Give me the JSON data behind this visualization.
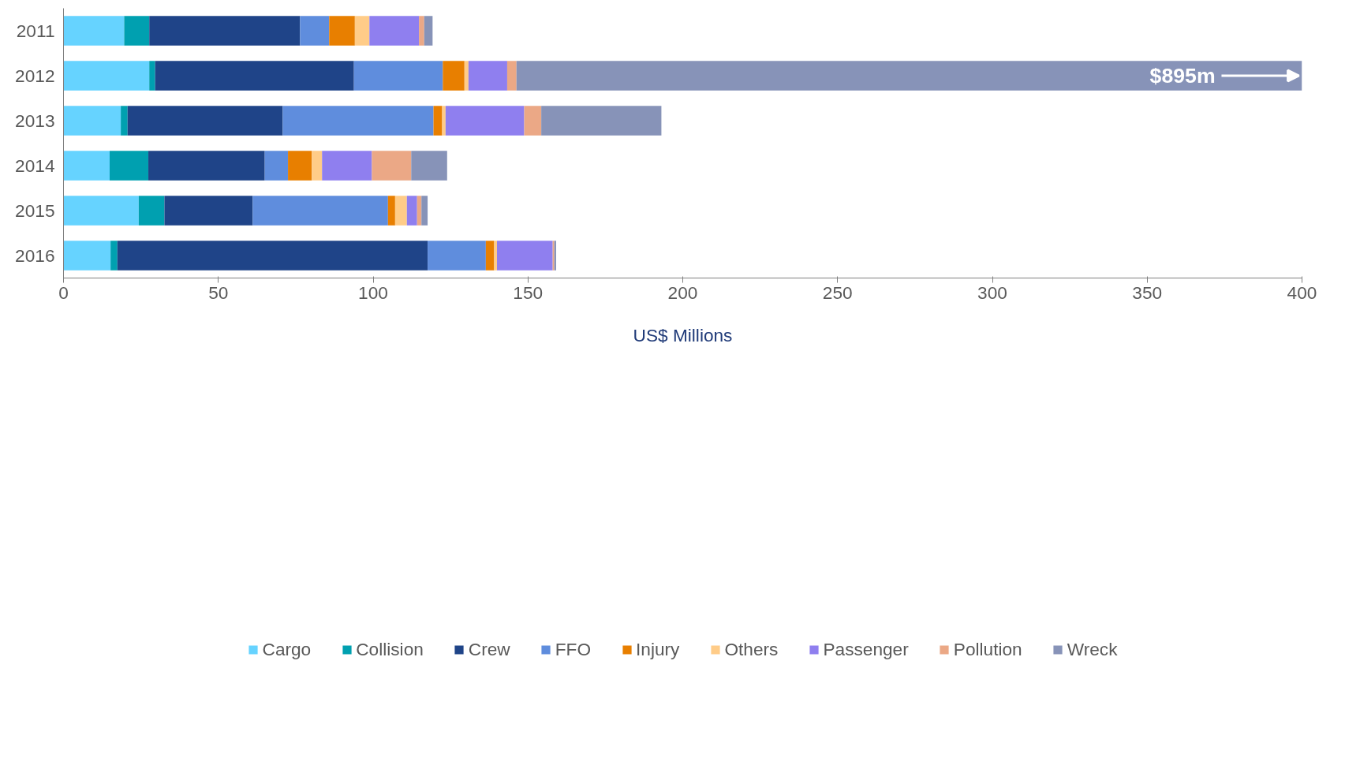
{
  "chart_data": {
    "type": "bar",
    "orientation": "horizontal",
    "stacked": true,
    "xlabel": "US$ Millions",
    "categories": [
      "2011",
      "2012",
      "2013",
      "2014",
      "2015",
      "2016"
    ],
    "xlim": [
      0,
      400
    ],
    "xticks": [
      0,
      50,
      100,
      150,
      200,
      250,
      300,
      350,
      400
    ],
    "grid": false,
    "legend": "bottom",
    "annotations": [
      {
        "text": "$895m",
        "x": 400,
        "y": "2012"
      }
    ],
    "series": [
      {
        "name": "Cargo",
        "color": "#66d3ff",
        "values": [
          19.6,
          27.7,
          18.5,
          14.9,
          24.3,
          15.2
        ]
      },
      {
        "name": "Collision",
        "color": "#00a0b0",
        "values": [
          8.1,
          1.9,
          2.2,
          12.5,
          8.3,
          2.2
        ]
      },
      {
        "name": "Crew",
        "color": "#1f4488",
        "values": [
          48.7,
          64.2,
          50.1,
          37.6,
          28.5,
          100.2
        ]
      },
      {
        "name": "FFO",
        "color": "#5f8ddd",
        "values": [
          9.4,
          28.7,
          48.7,
          7.5,
          43.7,
          18.8
        ]
      },
      {
        "name": "Injury",
        "color": "#e87f00",
        "values": [
          8.3,
          7.0,
          2.8,
          7.7,
          2.3,
          2.7
        ]
      },
      {
        "name": "Others",
        "color": "#ffcc88",
        "values": [
          4.7,
          1.3,
          1.1,
          3.3,
          3.8,
          0.9
        ]
      },
      {
        "name": "Passenger",
        "color": "#8f7fef",
        "values": [
          16.0,
          12.5,
          25.4,
          16.1,
          3.3,
          18.0
        ]
      },
      {
        "name": "Pollution",
        "color": "#eba886",
        "values": [
          1.7,
          3.0,
          5.5,
          12.7,
          1.4,
          0.5
        ]
      },
      {
        "name": "Wreck",
        "color": "#8793b8",
        "values": [
          2.7,
          253.7,
          38.8,
          11.6,
          2.0,
          0.6
        ]
      }
    ]
  }
}
